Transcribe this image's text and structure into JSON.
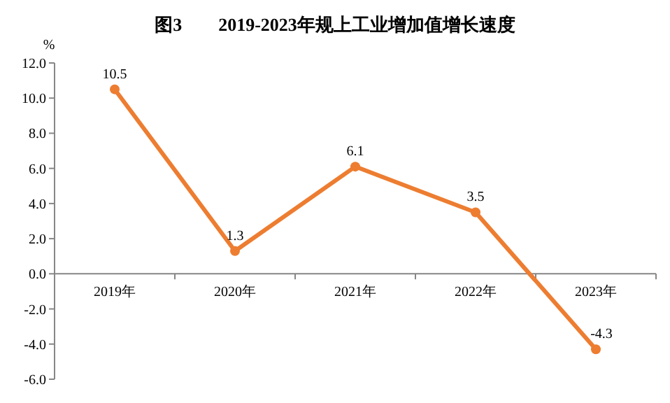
{
  "chart_data": {
    "type": "line",
    "title": "图3　　2019-2023年规上工业增加值增长速度",
    "ylabel": "%",
    "categories": [
      "2019年",
      "2020年",
      "2021年",
      "2022年",
      "2023年"
    ],
    "series": [
      {
        "color": "#ed7d31",
        "values": [
          10.5,
          1.3,
          6.1,
          3.5,
          -4.3
        ]
      }
    ],
    "ylim": [
      -6,
      12
    ],
    "yticks": [
      {
        "value": -6,
        "label": "-6.0"
      },
      {
        "value": -4,
        "label": "-4.0"
      },
      {
        "value": -2,
        "label": "-2.0"
      },
      {
        "value": 0,
        "label": "0.0"
      },
      {
        "value": 2,
        "label": "2.0"
      },
      {
        "value": 4,
        "label": "4.0"
      },
      {
        "value": 6,
        "label": "6.0"
      },
      {
        "value": 8,
        "label": "8.0"
      },
      {
        "value": 10,
        "label": "10.0"
      },
      {
        "value": 12,
        "label": "12.0"
      }
    ],
    "data_labels": true,
    "marker": "circle",
    "line_style": "solid",
    "grid": false
  }
}
